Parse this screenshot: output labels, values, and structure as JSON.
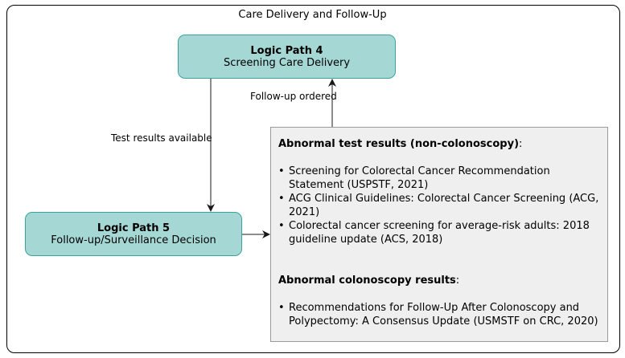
{
  "diagram": {
    "title": "Care Delivery and Follow-Up",
    "nodes": [
      {
        "id": "lp4",
        "title": "Logic Path 4",
        "subtitle": "Screening Care Delivery"
      },
      {
        "id": "lp5",
        "title": "Logic Path 5",
        "subtitle": "Follow-up/Surveillance Decision"
      }
    ],
    "edges": [
      {
        "from": "lp4",
        "to": "lp5",
        "label": "Test results available"
      },
      {
        "from": "note",
        "to": "lp4",
        "label": "Follow-up ordered"
      },
      {
        "from": "lp5",
        "to": "note",
        "label": ""
      }
    ],
    "note": {
      "section1": {
        "heading": "Abnormal test results (non-colonoscopy)",
        "suffix": ":",
        "items": [
          "Screening for Colorectal Cancer Recommendation Statement (USPSTF, 2021)",
          "ACG Clinical Guidelines: Colorectal Cancer Screening (ACG, 2021)",
          "Colorectal cancer screening for average-risk adults: 2018 guideline update (ACS, 2018)"
        ]
      },
      "section2": {
        "heading": "Abnormal colonoscopy results",
        "suffix": ":",
        "items": [
          "Recommendations for Follow-Up After Colonoscopy and Polypectomy: A Consensus Update (USMSTF on CRC, 2020)"
        ]
      }
    },
    "colors": {
      "node_fill": "#a5d8d5",
      "node_border": "#3aa39b",
      "note_fill": "#efefef",
      "note_border": "#9a9a9a"
    }
  }
}
